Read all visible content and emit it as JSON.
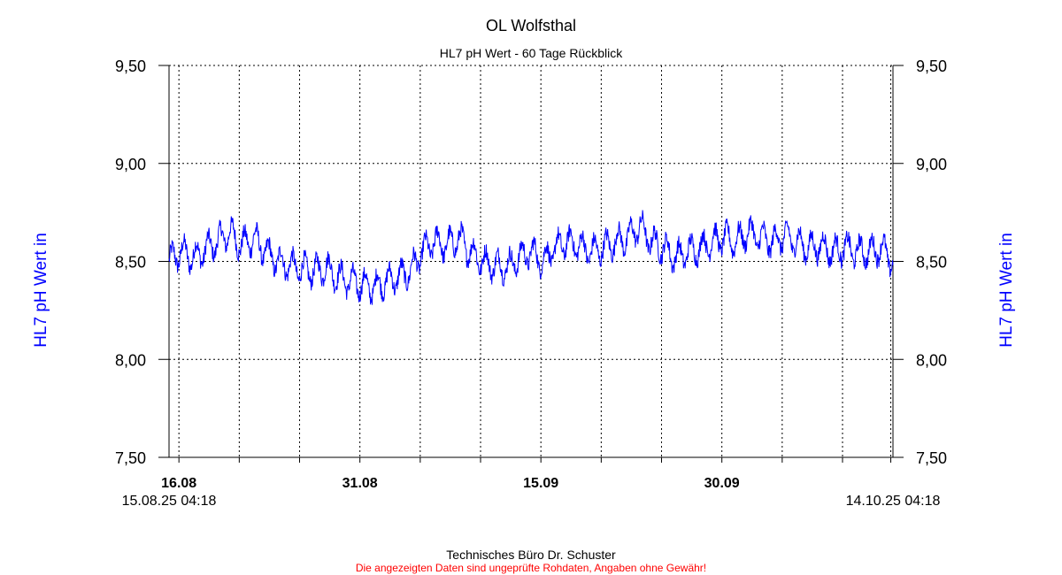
{
  "chart_data": {
    "type": "line",
    "title": "OL Wolfsthal",
    "subtitle": "HL7 pH Wert - 60 Tage Rückblick",
    "ylabel": "HL7 pH Wert in",
    "ylim": [
      7.5,
      9.5
    ],
    "y_ticks": [
      "9,50",
      "9,00",
      "8,50",
      "8,00",
      "7,50"
    ],
    "y_tick_values": [
      9.5,
      9.0,
      8.5,
      8.0,
      7.5
    ],
    "x_range_days": [
      0,
      60
    ],
    "x_date_labels": [
      {
        "day": 0.82,
        "label": "16.08"
      },
      {
        "day": 15.82,
        "label": "31.08"
      },
      {
        "day": 30.82,
        "label": "15.09"
      },
      {
        "day": 45.82,
        "label": "30.09"
      }
    ],
    "x_grid_days": [
      0.82,
      5.82,
      10.82,
      15.82,
      20.82,
      25.82,
      30.82,
      35.82,
      40.82,
      45.82,
      50.82,
      55.82,
      59.82
    ],
    "start_stamp": "15.08.25 04:18",
    "end_stamp": "14.10.25 04:18",
    "grid": true,
    "line_color": "#0000ff",
    "series": [
      {
        "x": [
          0,
          1,
          2,
          3,
          4,
          5,
          6,
          7,
          8,
          9,
          10,
          11,
          12,
          13,
          14,
          15,
          16,
          17,
          18,
          19,
          20,
          21,
          22,
          23,
          24,
          25,
          26,
          27,
          28,
          29,
          30,
          31,
          32,
          33,
          34,
          35,
          36,
          37,
          38,
          39,
          40,
          41,
          42,
          43,
          44,
          45,
          46,
          47,
          48,
          49,
          50,
          51,
          52,
          53,
          54,
          55,
          56,
          57,
          58,
          59,
          60
        ],
        "values": [
          8.5,
          8.55,
          8.52,
          8.56,
          8.6,
          8.65,
          8.58,
          8.62,
          8.55,
          8.5,
          8.48,
          8.46,
          8.45,
          8.47,
          8.42,
          8.4,
          8.38,
          8.37,
          8.4,
          8.42,
          8.45,
          8.55,
          8.6,
          8.58,
          8.62,
          8.55,
          8.5,
          8.48,
          8.47,
          8.52,
          8.55,
          8.5,
          8.57,
          8.6,
          8.58,
          8.55,
          8.57,
          8.6,
          8.62,
          8.68,
          8.6,
          8.57,
          8.52,
          8.55,
          8.57,
          8.6,
          8.62,
          8.6,
          8.65,
          8.62,
          8.6,
          8.63,
          8.6,
          8.57,
          8.58,
          8.55,
          8.57,
          8.55,
          8.55,
          8.57,
          8.5
        ],
        "noise_amplitude": 0.07
      }
    ]
  },
  "footer": {
    "company": "Technisches Büro Dr. Schuster",
    "disclaimer": "Die angezeigten Daten sind ungeprüfte Rohdaten, Angaben ohne Gewähr!",
    "disclaimer_color": "#ff0000"
  },
  "ylabel_color": "#0000ff"
}
